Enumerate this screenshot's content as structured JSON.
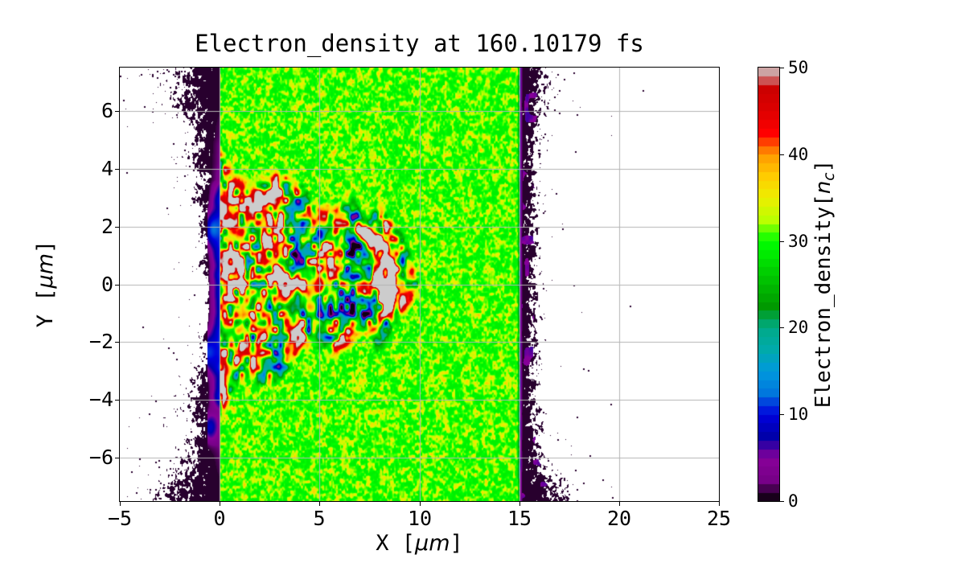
{
  "figure": {
    "title": "Electron_density at 160.10179 fs",
    "background": "#ffffff"
  },
  "axes": {
    "x": {
      "label_prefix": "X [",
      "label_unit": "μm",
      "label_suffix": "]",
      "ticks": [
        -5,
        0,
        5,
        10,
        15,
        20,
        25
      ],
      "range": [
        -5,
        25
      ]
    },
    "y": {
      "label_prefix": "Y [",
      "label_unit": "μm",
      "label_suffix": "]",
      "ticks": [
        6,
        4,
        2,
        0,
        -2,
        -4,
        -6
      ],
      "range": [
        -7.5,
        7.5
      ]
    },
    "grid_color": "#b4b4b4"
  },
  "colorbar": {
    "label_prefix": "Electron_density[",
    "label_var": "n",
    "label_sub": "c",
    "label_suffix": "]",
    "ticks": [
      0,
      10,
      20,
      30,
      40,
      50
    ],
    "range": [
      0,
      50
    ],
    "colormap": "nipy_spectral"
  },
  "chart_data": {
    "type": "heatmap",
    "title": "Electron_density at 160.10179 fs",
    "time_fs": 160.10179,
    "xlabel": "X [μm]",
    "ylabel": "Y [μm]",
    "x_range_um": [
      -5,
      25
    ],
    "y_range_um": [
      -7.5,
      7.5
    ],
    "value_label": "Electron_density[n_c]",
    "value_range_nc": [
      0,
      50
    ],
    "colormap": "nipy_spectral",
    "grid": true,
    "grid_x_lines_um": [
      0,
      5,
      10,
      15,
      20
    ],
    "grid_y_lines_um": [
      -6,
      -4,
      -2,
      0,
      2,
      4,
      6
    ],
    "key_colors": {
      "vacuum_white": "#ffffff",
      "low_density_speckle_black": "#20001f",
      "preplasma_purple": "#8800aa",
      "channel_blue": "#0000dd",
      "channel_teal": "#00aaaa",
      "bulk_green": "#00ff00",
      "mottling_yellow": "#eeee00",
      "filament_red": "#dd0000",
      "overdense_gray": "#cccccc",
      "grid_gray": "#b4b4b4"
    },
    "regions": [
      {
        "name": "left_vacuum_cloud",
        "x_um": [
          -5,
          -0.6
        ],
        "y_um": [
          -7.5,
          7.5
        ],
        "density_nc": "0-2",
        "appearance": "white vacuum with sparse dark macroparticle speckles; speckle cloud densest within ~1.5 um of target front, wider near top and bottom edges"
      },
      {
        "name": "front_surface_preplasma",
        "x_um": [
          -0.6,
          0
        ],
        "y_um": [
          -4.5,
          4
        ],
        "density_nc": "2-10",
        "appearance": "purple/violet expansion band hugging x=0 with a few blue spots near (-0.5,1.9), (-0.7,-2.4), (-0.5,-5.0)"
      },
      {
        "name": "bulk_target_slab",
        "x_um": [
          0,
          15
        ],
        "y_um": [
          -7.5,
          7.5
        ],
        "density_nc": "28-36",
        "appearance": "uniform bright-green plasma near 30 nc with fine yellow mottling"
      },
      {
        "name": "laser_drilled_turbulent_channel",
        "x_um": [
          0,
          9.6
        ],
        "y_um": [
          -3.5,
          4
        ],
        "density_nc": "0-55",
        "appearance": "turbulent filaments: gray overdense blobs >50 nc rimmed by red ~45 nc over blue/teal cavities 8-22 nc and indigo pockets ~5 nc"
      },
      {
        "name": "channel_front_arc",
        "center_um": [
          6.5,
          0.1
        ],
        "radius_um": 2.0,
        "density_nc": ">50",
        "appearance": "C-shaped gray/red arc bulging toward +x with dark-blue interior pocket"
      },
      {
        "name": "rear_surface_band",
        "x_um": [
          15,
          16.8
        ],
        "y_um": [
          -7.5,
          7.5
        ],
        "density_nc": "0-6",
        "appearance": "dense dark speckle band with thin purple line at x=15, widening near bottom"
      },
      {
        "name": "right_vacuum_cloud",
        "x_um": [
          16.8,
          24
        ],
        "y_um": [
          -7.5,
          7.5
        ],
        "density_nc": "0-1",
        "appearance": "sparse isolated dark dots thinning with distance, none beyond x≈24"
      }
    ]
  }
}
